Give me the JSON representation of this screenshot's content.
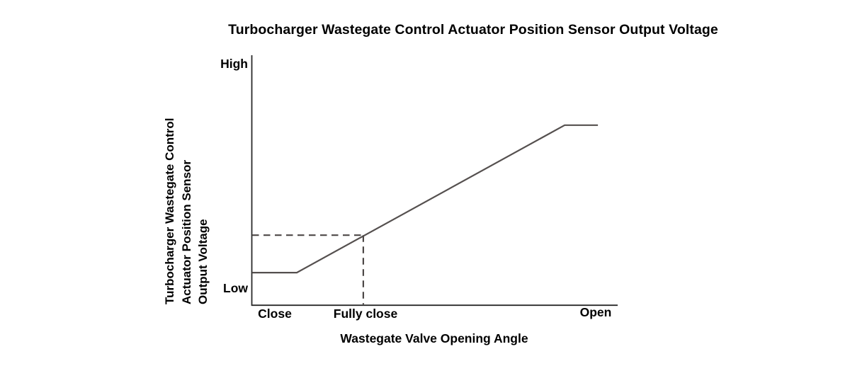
{
  "chart": {
    "title": "Turbocharger Wastegate Control Actuator Position Sensor Output Voltage",
    "x_axis_label": "Wastegate Valve Opening Angle",
    "y_axis_label_lines": [
      "Turbocharger Wastegate Control",
      "Actuator Position Sensor",
      "Output Voltage"
    ],
    "y_tick_high": "High",
    "y_tick_low": "Low",
    "x_tick_close": "Close",
    "x_tick_fully_close": "Fully close",
    "x_tick_open": "Open"
  },
  "colors": {
    "background": "#ffffff",
    "text": "#000000",
    "axis": "#2a2a2a",
    "line": "#55504f",
    "dashed": "#4d4847"
  },
  "chart_data": {
    "type": "line",
    "title": "Turbocharger Wastegate Control Actuator Position Sensor Output Voltage",
    "xlabel": "Wastegate Valve Opening Angle",
    "ylabel": "Turbocharger Wastegate Control Actuator Position Sensor Output Voltage",
    "x_tick_labels": [
      "Close",
      "Fully close",
      "Open"
    ],
    "x_tick_positions_normalized": [
      0.064,
      0.311,
      0.94
    ],
    "y_tick_labels": [
      "Low",
      "High"
    ],
    "y_tick_positions_normalized": [
      0.065,
      0.963
    ],
    "x_range_normalized": [
      0,
      1
    ],
    "y_range_normalized": [
      0,
      1
    ],
    "grid": false,
    "legend_position": "none",
    "series": [
      {
        "name": "Actuator position sensor output voltage",
        "points_normalized": [
          [
            0.0,
            0.13
          ],
          [
            0.122,
            0.13
          ],
          [
            0.855,
            0.72
          ],
          [
            0.946,
            0.72
          ]
        ],
        "shape": "flat low near Close, linear rise with opening angle, flat saturation near Open"
      }
    ],
    "reference_lines": {
      "style": "dashed",
      "x_normalized": 0.304,
      "y_normalized": 0.28,
      "x_label": "Fully close",
      "meaning": "Dashed lines mark sensor output voltage at the Fully close valve position"
    }
  }
}
